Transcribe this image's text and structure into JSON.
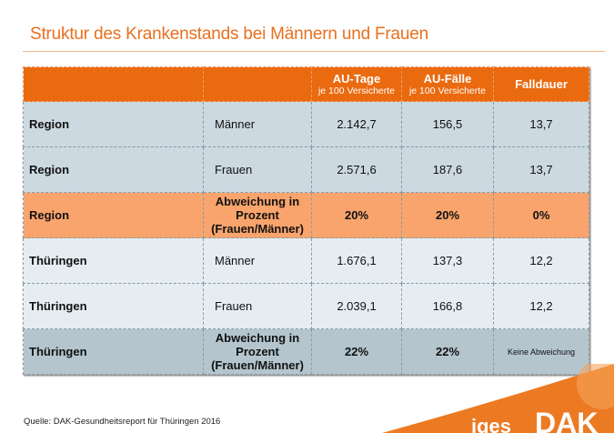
{
  "title": "Struktur des Krankenstands bei Männern und Frauen",
  "table": {
    "headers": [
      "",
      "",
      {
        "main": "AU-Tage",
        "sub": "je 100 Versicherte"
      },
      {
        "main": "AU-Fälle",
        "sub": "je 100 Versicherte"
      },
      {
        "main": "Falldauer"
      }
    ],
    "rows": [
      [
        "Region",
        "Männer",
        "2.142,7",
        "156,5",
        "13,7"
      ],
      [
        "Region",
        "Frauen",
        "2.571,6",
        "187,6",
        "13,7"
      ],
      [
        "Region",
        "Abweichung in Prozent (Frauen/Männer)",
        "20%",
        "20%",
        "0%"
      ],
      [
        "Thüringen",
        "Männer",
        "1.676,1",
        "137,3",
        "12,2"
      ],
      [
        "Thüringen",
        "Frauen",
        "2.039,1",
        "166,8",
        "12,2"
      ],
      [
        "Thüringen",
        "Abweichung in Prozent (Frauen/Männer)",
        "22%",
        "22%",
        "Keine Abweichung"
      ]
    ]
  },
  "source": "Quelle: DAK-Gesundheitsreport für Thüringen 2016",
  "logo": {
    "text": "DAK",
    "partner_text": "iges"
  },
  "colors": {
    "accent": "#ea6a10",
    "highlight": "#f9a46c"
  }
}
